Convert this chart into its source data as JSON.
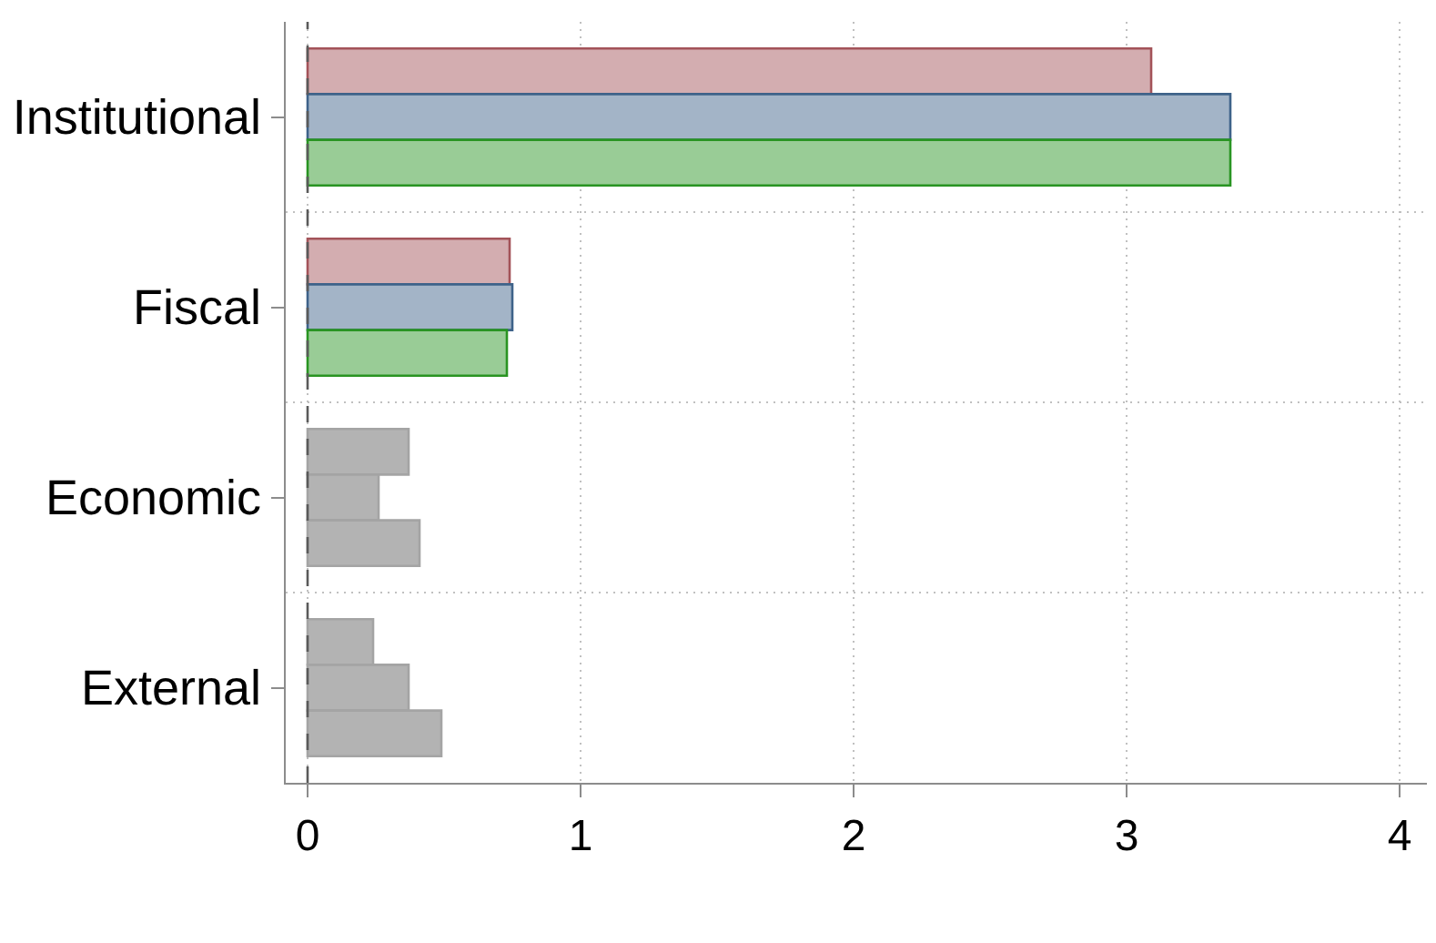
{
  "chart_data": {
    "type": "bar",
    "orientation": "horizontal",
    "categories": [
      "Institutional",
      "Fiscal",
      "Economic",
      "External"
    ],
    "series": [
      {
        "colors": [
          "#d3adb0",
          "#d3adb0",
          "#b3b3b3",
          "#b3b3b3"
        ],
        "values": [
          3.09,
          0.74,
          0.37,
          0.24
        ]
      },
      {
        "colors": [
          "#a3b4c7",
          "#a3b4c7",
          "#b3b3b3",
          "#b3b3b3"
        ],
        "values": [
          3.38,
          0.75,
          0.26,
          0.37
        ]
      },
      {
        "colors": [
          "#99cc96",
          "#99cc96",
          "#b3b3b3",
          "#b3b3b3"
        ],
        "values": [
          3.38,
          0.73,
          0.41,
          0.49
        ]
      }
    ],
    "xlim": [
      -0.08,
      4.1
    ],
    "xticks": [
      0,
      1,
      2,
      3,
      4
    ],
    "grid": true,
    "ref_lines": [
      {
        "axis": "x",
        "value": 0,
        "color": "#5a5a5a",
        "line_style": "dashed"
      }
    ]
  }
}
